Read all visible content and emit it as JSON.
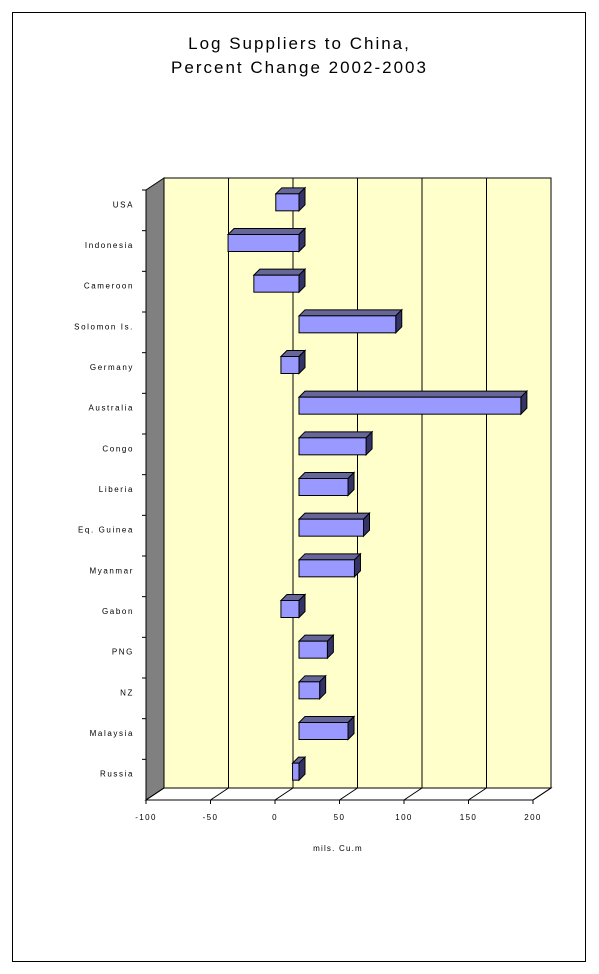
{
  "chart_data": {
    "type": "bar",
    "orientation": "horizontal",
    "style": "3d",
    "title": [
      "Log Suppliers to China,",
      "Percent Change 2002-2003"
    ],
    "xlabel": "mils. Cu.m",
    "xlim": [
      -100,
      200
    ],
    "xticks": [
      "-100",
      "-50",
      "0",
      "50",
      "100",
      "150",
      "200"
    ],
    "grid": "vertical",
    "legend": "none",
    "categories": [
      "USA",
      "Indonesia",
      "Cameroon",
      "Solomon Is.",
      "Germany",
      "Australia",
      "Congo",
      "Liberia",
      "Eq. Guinea",
      "Myanmar",
      "Gabon",
      "PNG",
      "NZ",
      "Malaysia",
      "Russia"
    ],
    "values": [
      -18,
      -55,
      -35,
      75,
      -14,
      172,
      52,
      38,
      50,
      43,
      -14,
      22,
      16,
      38,
      -5
    ],
    "colors": {
      "bar_front": "#9999ff",
      "bar_side": "#333366",
      "bar_top": "#666699",
      "plot_bg": "#ffffcc",
      "wall": "#808080"
    }
  }
}
